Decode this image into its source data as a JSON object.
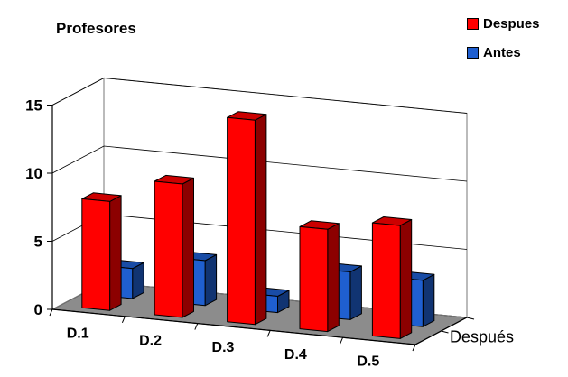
{
  "chart_data": {
    "type": "bar",
    "title": "Profesores",
    "categories": [
      "D.1",
      "D.2",
      "D.3",
      "D.4",
      "D.5"
    ],
    "series": [
      {
        "name": "Despues",
        "values": [
          8,
          9.8,
          15,
          7.5,
          8.3
        ],
        "color": "#ff0000"
      },
      {
        "name": "Antes",
        "values": [
          2.2,
          3.3,
          1.2,
          3.5,
          3.4
        ],
        "color": "#1f5fd0"
      }
    ],
    "depth_axis_label": "Después",
    "y_ticks": [
      "0",
      "5",
      "10",
      "15"
    ],
    "ylim": [
      0,
      15
    ],
    "grid": true,
    "legend_position": "top-right"
  }
}
